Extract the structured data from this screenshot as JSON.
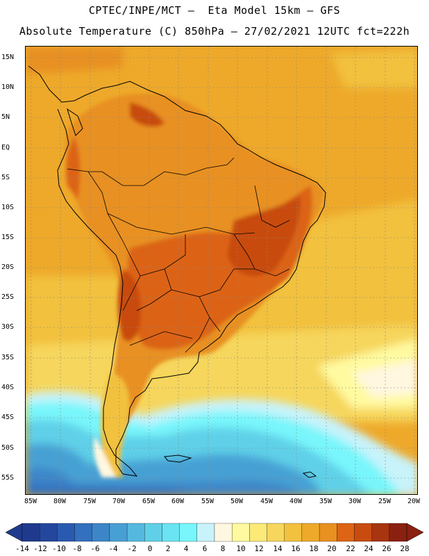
{
  "header": {
    "title_line1": "CPTEC/INPE/MCT –  Eta Model 15km – GFS",
    "title_line2": "Absolute Temperature (C) 850hPa – 27/02/2021 12UTC fct=222h"
  },
  "map": {
    "lat_labels": [
      "15N",
      "10N",
      "5N",
      "EQ",
      "5S",
      "10S",
      "15S",
      "20S",
      "25S",
      "30S",
      "35S",
      "40S",
      "45S",
      "50S",
      "55S"
    ],
    "lon_labels": [
      "85W",
      "80W",
      "75W",
      "70W",
      "65W",
      "60W",
      "55W",
      "50W",
      "45W",
      "40W",
      "35W",
      "30W",
      "25W",
      "20W"
    ]
  },
  "colorbar": {
    "labels": [
      "-14",
      "-12",
      "-10",
      "-8",
      "-6",
      "-4",
      "-2",
      "0",
      "2",
      "4",
      "6",
      "8",
      "10",
      "12",
      "14",
      "16",
      "18",
      "20",
      "22",
      "24",
      "26",
      "28"
    ],
    "colors": [
      "#1f3a8c",
      "#24479d",
      "#2a5aaf",
      "#3370bf",
      "#3c86c8",
      "#47a0d4",
      "#55b8de",
      "#5fd0e8",
      "#6ae4f2",
      "#78f6fb",
      "#c8f3fb",
      "#fff7e0",
      "#fffaa0",
      "#fbe978",
      "#f6d65c",
      "#f2c13e",
      "#eea92a",
      "#e89020",
      "#dc6414",
      "#c84c10",
      "#a83410",
      "#8a2010"
    ]
  }
}
